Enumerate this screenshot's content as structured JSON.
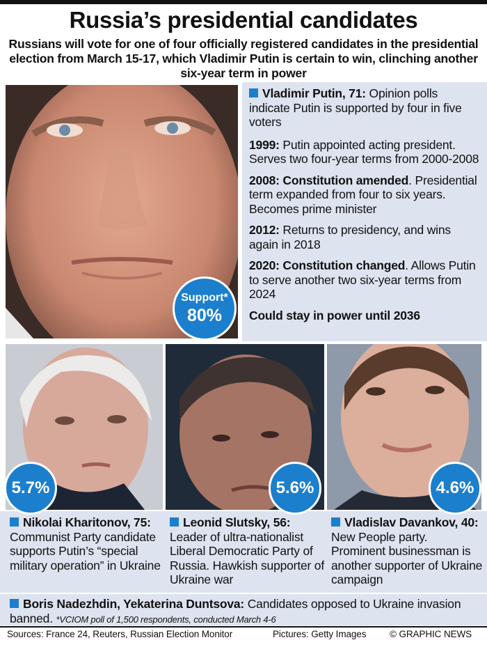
{
  "header": {
    "title": "Russia’s presidential candidates",
    "subtitle": "Russians will vote for one of four officially registered candidates in the presidential election from March 15-17, which Vladimir Putin is certain to win, clinching another six-year term in power"
  },
  "putin": {
    "name": "Vladimir Putin, 71:",
    "intro": " Opinion polls indicate Putin is supported by four in five voters",
    "timeline": [
      {
        "year": "1999:",
        "text": " Putin appointed acting president. Serves two four-year terms from 2000-2008"
      },
      {
        "year": "2008:",
        "bold": " Constitution amended",
        "text": ". Presidential term expanded from four to six years. Becomes prime minister"
      },
      {
        "year": "2012:",
        "text": " Returns to presidency, and wins again in 2018"
      },
      {
        "year": "2020:",
        "bold": " Constitution changed",
        "text": ". Allows Putin to serve another two six-year terms from 2024"
      }
    ],
    "conclusion": "Could stay in power until 2036",
    "badge_label": "Support*",
    "badge_value": "80%"
  },
  "candidates": [
    {
      "name": "Nikolai Kharitonov,",
      "bold_rest": "75:",
      "text": " Communist Party candidate supports Putin’s “special military operation” in Ukraine",
      "support": "5.7%"
    },
    {
      "name": "Leonid Slutsky, 56:",
      "bold_rest": "",
      "text": "Leader of ultra-nationalist Liberal Democratic Party of Russia. Hawkish supporter of Ukraine war",
      "support": "5.6%"
    },
    {
      "name": "Vladislav Davankov,",
      "bold_rest": "40:",
      "text": " New People party. Prominent businessman is another supporter of Ukraine campaign",
      "support": "4.6%"
    }
  ],
  "banned": {
    "names": "Boris Nadezhdin, Yekaterina Duntsova:",
    "text": " Candidates opposed to Ukraine invasion banned.",
    "note": "*VCIOM poll of 1,500 respondents, conducted March 4-6"
  },
  "footer": {
    "sources": "Sources: France 24, Reuters, Russian Election Monitor",
    "pictures": "Pictures: Getty Images",
    "credit": "© GRAPHIC NEWS"
  },
  "colors": {
    "accent": "#1c7fcd",
    "panel": "#dde3ef"
  },
  "icons": [
    "square-bullet-icon"
  ]
}
